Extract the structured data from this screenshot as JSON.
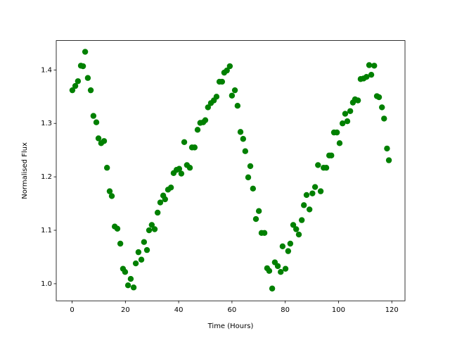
{
  "chart_data": {
    "type": "scatter",
    "color": "#008000",
    "x_label": "Time (Hours)",
    "y_label": "Normalised Flux",
    "xlim": [
      -5.95,
      124.95
    ],
    "ylim": [
      0.968,
      1.455
    ],
    "xticks": [
      0,
      20,
      40,
      60,
      80,
      100,
      120
    ],
    "yticks": [
      {
        "value": 1,
        "label": "1.0"
      },
      {
        "value": 1.1,
        "label": "1.1"
      },
      {
        "value": 1.2,
        "label": "1.2"
      },
      {
        "value": 1.3,
        "label": "1.3"
      },
      {
        "value": 1.4,
        "label": "1.4"
      }
    ],
    "x": [
      0.1,
      1.2,
      2.2,
      3.3,
      4.1,
      4.9,
      5.9,
      7.0,
      8.0,
      9.1,
      9.9,
      10.9,
      12.0,
      13.1,
      14.1,
      14.9,
      16.0,
      17.0,
      18.1,
      19.1,
      19.9,
      21.0,
      22.0,
      23.1,
      23.9,
      24.9,
      26.0,
      27.0,
      28.1,
      28.9,
      29.9,
      31.0,
      32.1,
      33.1,
      34.2,
      34.9,
      36.0,
      37.1,
      38.1,
      39.2,
      40.2,
      41.0,
      42.1,
      43.1,
      44.2,
      45.0,
      46.0,
      47.1,
      48.1,
      49.2,
      50.0,
      51.0,
      52.1,
      53.2,
      54.2,
      55.3,
      56.3,
      57.1,
      58.1,
      59.2,
      60.0,
      61.1,
      62.1,
      63.2,
      64.2,
      65.0,
      66.1,
      66.9,
      67.9,
      69.0,
      70.1,
      71.1,
      72.2,
      73.2,
      74.0,
      75.1,
      76.1,
      77.2,
      78.3,
      79.0,
      80.1,
      81.1,
      81.9,
      83.0,
      84.1,
      85.1,
      86.2,
      87.0,
      88.0,
      89.1,
      90.2,
      91.2,
      92.3,
      93.3,
      94.4,
      95.4,
      96.5,
      97.3,
      98.3,
      99.4,
      100.4,
      101.5,
      102.5,
      103.3,
      104.4,
      105.4,
      106.2,
      107.3,
      108.3,
      109.4,
      110.5,
      111.5,
      112.3,
      113.4,
      114.4,
      115.2,
      116.3,
      117.1,
      118.2,
      118.9
    ],
    "values": [
      1.362,
      1.37,
      1.379,
      1.408,
      1.407,
      1.434,
      1.385,
      1.362,
      1.314,
      1.302,
      1.272,
      1.263,
      1.267,
      1.217,
      1.173,
      1.164,
      1.107,
      1.103,
      1.075,
      1.028,
      1.022,
      0.997,
      1.009,
      0.993,
      1.038,
      1.059,
      1.045,
      1.078,
      1.063,
      1.1,
      1.11,
      1.102,
      1.133,
      1.152,
      1.165,
      1.158,
      1.176,
      1.18,
      1.207,
      1.213,
      1.215,
      1.206,
      1.265,
      1.222,
      1.217,
      1.255,
      1.255,
      1.288,
      1.301,
      1.302,
      1.306,
      1.33,
      1.338,
      1.343,
      1.35,
      1.378,
      1.378,
      1.395,
      1.399,
      1.407,
      1.352,
      1.362,
      1.333,
      1.284,
      1.271,
      1.248,
      1.199,
      1.22,
      1.178,
      1.121,
      1.136,
      1.095,
      1.095,
      1.029,
      1.024,
      0.991,
      1.04,
      1.033,
      1.022,
      1.07,
      1.028,
      1.061,
      1.075,
      1.11,
      1.102,
      1.092,
      1.119,
      1.147,
      1.166,
      1.139,
      1.169,
      1.181,
      1.222,
      1.173,
      1.217,
      1.217,
      1.24,
      1.24,
      1.283,
      1.283,
      1.263,
      1.3,
      1.318,
      1.304,
      1.323,
      1.339,
      1.345,
      1.343,
      1.383,
      1.384,
      1.387,
      1.409,
      1.391,
      1.408,
      1.351,
      1.349,
      1.33,
      1.309,
      1.253,
      1.231
    ]
  }
}
